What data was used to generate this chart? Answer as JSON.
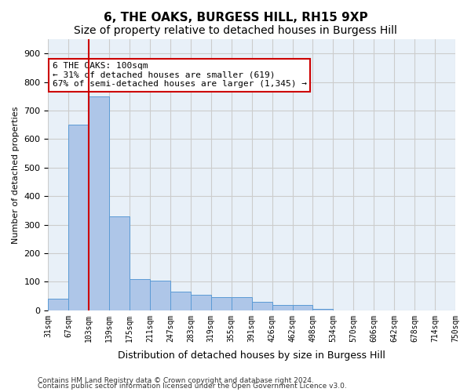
{
  "title": "6, THE OAKS, BURGESS HILL, RH15 9XP",
  "subtitle": "Size of property relative to detached houses in Burgess Hill",
  "xlabel": "Distribution of detached houses by size in Burgess Hill",
  "ylabel": "Number of detached properties",
  "bin_labels": [
    "31sqm",
    "67sqm",
    "103sqm",
    "139sqm",
    "175sqm",
    "211sqm",
    "247sqm",
    "283sqm",
    "319sqm",
    "355sqm",
    "391sqm",
    "426sqm",
    "462sqm",
    "498sqm",
    "534sqm",
    "570sqm",
    "606sqm",
    "642sqm",
    "678sqm",
    "714sqm",
    "750sqm"
  ],
  "bar_values": [
    40,
    650,
    750,
    330,
    110,
    105,
    65,
    55,
    45,
    45,
    30,
    18,
    18,
    5,
    0,
    0,
    0,
    0,
    0,
    0
  ],
  "bar_color": "#aec6e8",
  "bar_edgecolor": "#5b9bd5",
  "property_line_color": "#cc0000",
  "annotation_text": "6 THE OAKS: 100sqm\n← 31% of detached houses are smaller (619)\n67% of semi-detached houses are larger (1,345) →",
  "annotation_box_color": "#ffffff",
  "annotation_box_edgecolor": "#cc0000",
  "footnote1": "Contains HM Land Registry data © Crown copyright and database right 2024.",
  "footnote2": "Contains public sector information licensed under the Open Government Licence v3.0.",
  "ylim": [
    0,
    950
  ],
  "yticks": [
    0,
    100,
    200,
    300,
    400,
    500,
    600,
    700,
    800,
    900
  ],
  "grid_color": "#cccccc",
  "bg_color": "#e8f0f8",
  "title_fontsize": 11,
  "subtitle_fontsize": 10
}
